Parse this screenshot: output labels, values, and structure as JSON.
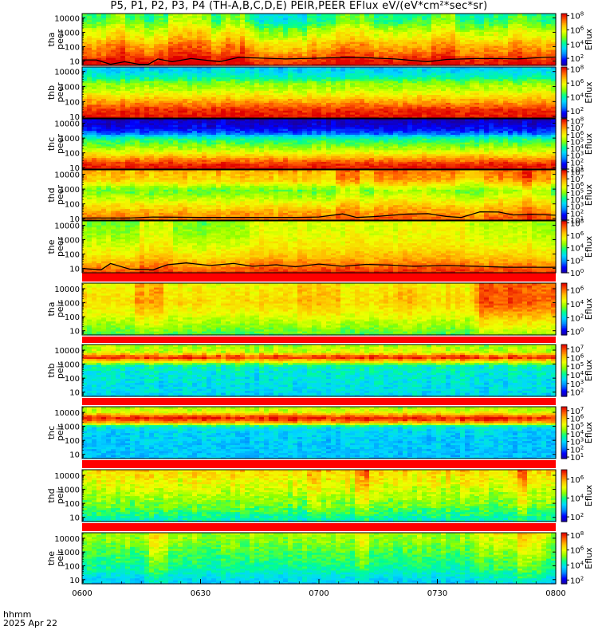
{
  "title": "P5, P1, P2, P3, P4 (TH-A,B,C,D,E) PEIR,PEER EFlux eV/(eV*cm²*sec*sr)",
  "time_axis": {
    "ticks": [
      "0600",
      "0630",
      "0700",
      "0730",
      "0800"
    ],
    "label_unit": "hhmm",
    "date": "2025 Apr 22"
  },
  "colors": {
    "cmap": [
      "#1a00a0",
      "#0000ff",
      "#0088ff",
      "#00d8ff",
      "#00ff90",
      "#8aff00",
      "#f0ff00",
      "#ffc000",
      "#ff6000",
      "#e00000"
    ],
    "bar_red": "#ff0000",
    "potential_line": "#000000"
  },
  "chart_data": [
    {
      "type": "heatmap",
      "id": "tha-peer",
      "probe": "tha",
      "species": "peer",
      "ylabel": [
        "tha",
        "peer"
      ],
      "yticks": [
        "10000",
        "1000",
        "100",
        "10"
      ],
      "ylog": true,
      "ylim": [
        5,
        20000
      ],
      "colorbar": {
        "label": "Eflux",
        "ticks": [
          {
            "e": "8",
            "v": 8
          },
          {
            "e": "6",
            "v": 6
          },
          {
            "e": "4",
            "v": 4
          },
          {
            "e": "2",
            "v": 2
          }
        ],
        "range": [
          1,
          8.3
        ]
      },
      "base_profile": [
        [
          0,
          8.0
        ],
        [
          0.12,
          7.6
        ],
        [
          0.22,
          7.0
        ],
        [
          0.42,
          6.2
        ],
        [
          0.55,
          5.4
        ],
        [
          0.7,
          4.8
        ],
        [
          0.85,
          3.8
        ],
        [
          1,
          3.5
        ]
      ],
      "events": [
        [
          0.16,
          0.2,
          0.8,
          0.15
        ],
        [
          0.07,
          0.015,
          0.8,
          0.05
        ],
        [
          0.23,
          0.04,
          0.9,
          0.1
        ],
        [
          0.32,
          0.02,
          0.8,
          0.1
        ],
        [
          0.54,
          0.06,
          0.6,
          0.1
        ],
        [
          0.66,
          0.12,
          0.8,
          0.15
        ],
        [
          0.84,
          0.1,
          0.6,
          0.12
        ],
        [
          0.95,
          0.05,
          0.6,
          0.1
        ]
      ],
      "potential": [
        [
          0,
          12
        ],
        [
          0.03,
          12
        ],
        [
          0.06,
          6
        ],
        [
          0.09,
          9
        ],
        [
          0.12,
          6
        ],
        [
          0.14,
          6
        ],
        [
          0.16,
          14
        ],
        [
          0.19,
          9
        ],
        [
          0.23,
          15
        ],
        [
          0.29,
          9
        ],
        [
          0.33,
          18
        ],
        [
          0.38,
          16
        ],
        [
          0.43,
          14
        ],
        [
          0.5,
          16
        ],
        [
          0.55,
          18
        ],
        [
          0.6,
          17
        ],
        [
          0.66,
          14
        ],
        [
          0.73,
          9
        ],
        [
          0.77,
          13
        ],
        [
          0.83,
          15
        ],
        [
          0.88,
          15
        ],
        [
          0.92,
          14
        ],
        [
          0.97,
          18
        ],
        [
          1,
          19
        ]
      ]
    },
    {
      "type": "heatmap",
      "id": "thb-peer",
      "probe": "thb",
      "species": "peer",
      "ylabel": [
        "thb",
        "peer"
      ],
      "yticks": [
        "10000",
        "1000",
        "100",
        "10"
      ],
      "ylog": true,
      "ylim": [
        8,
        20000
      ],
      "colorbar": {
        "label": "Eflux",
        "ticks": [
          {
            "e": "8",
            "v": 8
          },
          {
            "e": "6",
            "v": 6
          },
          {
            "e": "4",
            "v": 4
          },
          {
            "e": "2",
            "v": 2
          }
        ],
        "range": [
          1,
          8.3
        ]
      },
      "base_profile": [
        [
          0,
          8.2
        ],
        [
          0.15,
          8.0
        ],
        [
          0.25,
          7.4
        ],
        [
          0.38,
          6.6
        ],
        [
          0.55,
          5.5
        ],
        [
          0.7,
          5.0
        ],
        [
          0.8,
          4.0
        ],
        [
          1,
          3.2
        ]
      ],
      "events": [],
      "potential": []
    },
    {
      "type": "heatmap",
      "id": "thc-peer",
      "probe": "thc",
      "species": "peer",
      "ylabel": [
        "thc",
        "peer"
      ],
      "yticks": [
        "10000",
        "1000",
        "100",
        "10"
      ],
      "ylog": true,
      "ylim": [
        8,
        20000
      ],
      "colorbar": {
        "label": "Eflux",
        "ticks": [
          {
            "e": "8",
            "v": 8
          },
          {
            "e": "7",
            "v": 7
          },
          {
            "e": "6",
            "v": 6
          },
          {
            "e": "5",
            "v": 5
          },
          {
            "e": "4",
            "v": 4
          },
          {
            "e": "3",
            "v": 3
          },
          {
            "e": "2",
            "v": 2
          },
          {
            "e": "1",
            "v": 1
          }
        ],
        "range": [
          1,
          8.3
        ]
      },
      "base_profile": [
        [
          0,
          8.2
        ],
        [
          0.1,
          8.0
        ],
        [
          0.2,
          7.2
        ],
        [
          0.35,
          5.8
        ],
        [
          0.5,
          4.8
        ],
        [
          0.62,
          4.2
        ],
        [
          0.72,
          2.4
        ],
        [
          0.85,
          1.6
        ],
        [
          1,
          1.2
        ]
      ],
      "events": [],
      "potential": []
    },
    {
      "type": "heatmap",
      "id": "thd-peer",
      "probe": "thd",
      "species": "peer",
      "ylabel": [
        "thd",
        "peer"
      ],
      "yticks": [
        "10000",
        "1000",
        "100",
        "10"
      ],
      "ylog": true,
      "ylim": [
        8,
        20000
      ],
      "colorbar": {
        "label": "Eflux",
        "ticks": [
          {
            "e": "8",
            "v": 8
          },
          {
            "e": "7",
            "v": 7
          },
          {
            "e": "6",
            "v": 6
          },
          {
            "e": "5",
            "v": 5
          },
          {
            "e": "4",
            "v": 4
          },
          {
            "e": "3",
            "v": 3
          },
          {
            "e": "2",
            "v": 2
          },
          {
            "e": "1",
            "v": 1
          }
        ],
        "range": [
          1,
          8.3
        ]
      },
      "base_profile": [
        [
          0,
          7.4
        ],
        [
          0.12,
          7.0
        ],
        [
          0.3,
          6.2
        ],
        [
          0.45,
          5.4
        ],
        [
          0.6,
          4.8
        ],
        [
          0.8,
          6.4
        ],
        [
          1,
          6.8
        ]
      ],
      "events": [
        [
          0.7,
          0.08,
          0.6,
          0.1
        ],
        [
          0.56,
          0.02,
          0.8,
          0.15
        ],
        [
          0.9,
          0.05,
          0.6,
          0.1
        ],
        [
          0.96,
          0.03,
          0.8,
          0.15
        ]
      ],
      "potential": [
        [
          0,
          11
        ],
        [
          0.1,
          11
        ],
        [
          0.15,
          13
        ],
        [
          0.25,
          12
        ],
        [
          0.45,
          12
        ],
        [
          0.5,
          13
        ],
        [
          0.55,
          21
        ],
        [
          0.58,
          12
        ],
        [
          0.62,
          14
        ],
        [
          0.68,
          20
        ],
        [
          0.73,
          22
        ],
        [
          0.77,
          14
        ],
        [
          0.8,
          12
        ],
        [
          0.84,
          29
        ],
        [
          0.88,
          28
        ],
        [
          0.91,
          18
        ],
        [
          0.95,
          20
        ],
        [
          1,
          17
        ]
      ]
    },
    {
      "type": "heatmap",
      "id": "the-peer",
      "probe": "the",
      "species": "peer",
      "ylabel": [
        "the",
        "peer"
      ],
      "yticks": [
        "10000",
        "1000",
        "100",
        "10"
      ],
      "ylog": true,
      "ylim": [
        5,
        20000
      ],
      "colorbar": {
        "label": "Eflux",
        "ticks": [
          {
            "e": "8",
            "v": 8
          },
          {
            "e": "6",
            "v": 6
          },
          {
            "e": "4",
            "v": 4
          },
          {
            "e": "2",
            "v": 2
          },
          {
            "e": "0",
            "v": 0
          }
        ],
        "range": [
          0,
          8.3
        ]
      },
      "base_profile": [
        [
          0,
          7.6
        ],
        [
          0.15,
          6.8
        ],
        [
          0.3,
          6.0
        ],
        [
          0.5,
          5.3
        ],
        [
          0.7,
          4.8
        ],
        [
          1,
          4.4
        ]
      ],
      "events": [
        [
          0.16,
          0.03,
          0.8,
          0.1
        ],
        [
          0.58,
          0.22,
          0.9,
          0.18
        ],
        [
          0.88,
          0.08,
          0.7,
          0.15
        ]
      ],
      "potential": [
        [
          0,
          10
        ],
        [
          0.04,
          8
        ],
        [
          0.06,
          22
        ],
        [
          0.1,
          9
        ],
        [
          0.15,
          8
        ],
        [
          0.18,
          18
        ],
        [
          0.22,
          24
        ],
        [
          0.27,
          16
        ],
        [
          0.32,
          22
        ],
        [
          0.36,
          14
        ],
        [
          0.41,
          18
        ],
        [
          0.45,
          13
        ],
        [
          0.5,
          20
        ],
        [
          0.55,
          14
        ],
        [
          0.6,
          19
        ],
        [
          0.65,
          17
        ],
        [
          0.7,
          14
        ],
        [
          0.77,
          16
        ],
        [
          0.83,
          14
        ],
        [
          0.9,
          12
        ],
        [
          1,
          12
        ]
      ]
    },
    {
      "type": "heatmap",
      "id": "tha-peir",
      "probe": "tha",
      "species": "peir",
      "ylabel": [
        "tha",
        "peir"
      ],
      "yticks": [
        "10000",
        "1000",
        "100",
        "10"
      ],
      "ylog": true,
      "ylim": [
        5,
        25000
      ],
      "colorbar": {
        "label": "Eflux",
        "ticks": [
          {
            "e": "6",
            "v": 6
          },
          {
            "e": "4",
            "v": 4
          },
          {
            "e": "2",
            "v": 2
          },
          {
            "e": "0",
            "v": 0
          }
        ],
        "range": [
          -0.5,
          7
        ]
      },
      "base_profile": [
        [
          0,
          3.2
        ],
        [
          0.2,
          3.8
        ],
        [
          0.45,
          4.6
        ],
        [
          0.62,
          5.0
        ],
        [
          0.85,
          4.8
        ],
        [
          1,
          4.6
        ]
      ],
      "events": [
        [
          0.14,
          0.025,
          0.8,
          0.12
        ],
        [
          0.5,
          0.04,
          0.5,
          0.12
        ],
        [
          0.68,
          0.02,
          0.6,
          0.1
        ],
        [
          0.93,
          0.1,
          0.7,
          0.1
        ],
        [
          0.99,
          0.15,
          0.9,
          0.12
        ]
      ],
      "potential": []
    },
    {
      "type": "heatmap",
      "id": "thb-peir",
      "probe": "thb",
      "species": "peir",
      "ylabel": [
        "thb",
        "peir"
      ],
      "yticks": [
        "10000",
        "1000",
        "100",
        "10"
      ],
      "ylog": true,
      "ylim": [
        5,
        25000
      ],
      "colorbar": {
        "label": "Eflux",
        "ticks": [
          {
            "e": "7",
            "v": 7
          },
          {
            "e": "6",
            "v": 6
          },
          {
            "e": "5",
            "v": 5
          },
          {
            "e": "4",
            "v": 4
          },
          {
            "e": "3",
            "v": 3
          },
          {
            "e": "2",
            "v": 2
          }
        ],
        "range": [
          1.5,
          7.5
        ]
      },
      "base_profile": [
        [
          0,
          3.5
        ],
        [
          0.5,
          3.8
        ],
        [
          0.6,
          4.0
        ],
        [
          0.72,
          6.5
        ],
        [
          0.76,
          7.3
        ],
        [
          0.8,
          6.6
        ],
        [
          0.86,
          5.3
        ],
        [
          1,
          5.0
        ]
      ],
      "events": [],
      "potential": []
    },
    {
      "type": "heatmap",
      "id": "thc-peir",
      "probe": "thc",
      "species": "peir",
      "ylabel": [
        "thc",
        "peir"
      ],
      "yticks": [
        "10000",
        "1000",
        "100",
        "10"
      ],
      "ylog": true,
      "ylim": [
        5,
        25000
      ],
      "colorbar": {
        "label": "Eflux",
        "ticks": [
          {
            "e": "7",
            "v": 7
          },
          {
            "e": "6",
            "v": 6
          },
          {
            "e": "5",
            "v": 5
          },
          {
            "e": "4",
            "v": 4
          },
          {
            "e": "3",
            "v": 3
          },
          {
            "e": "2",
            "v": 2
          },
          {
            "e": "1",
            "v": 1
          }
        ],
        "range": [
          0.8,
          7.5
        ]
      },
      "base_profile": [
        [
          0,
          2.8
        ],
        [
          0.5,
          3.0
        ],
        [
          0.62,
          3.3
        ],
        [
          0.72,
          6.6
        ],
        [
          0.8,
          7.4
        ],
        [
          0.86,
          6.0
        ],
        [
          0.92,
          5.0
        ],
        [
          1,
          4.8
        ]
      ],
      "events": [],
      "potential": []
    },
    {
      "type": "heatmap",
      "id": "thd-peir",
      "probe": "thd",
      "species": "peir",
      "ylabel": [
        "thd",
        "peir"
      ],
      "yticks": [
        "10000",
        "1000",
        "100",
        "10"
      ],
      "ylog": true,
      "ylim": [
        5,
        25000
      ],
      "colorbar": {
        "label": "Eflux",
        "ticks": [
          {
            "e": "6",
            "v": 6
          },
          {
            "e": "4",
            "v": 4
          },
          {
            "e": "2",
            "v": 2
          }
        ],
        "range": [
          1.5,
          7
        ]
      },
      "base_profile": [
        [
          0,
          3.6
        ],
        [
          0.3,
          4.4
        ],
        [
          0.6,
          4.9
        ],
        [
          0.85,
          5.3
        ],
        [
          1,
          5.5
        ]
      ],
      "events": [
        [
          0.59,
          0.01,
          0.8,
          0.12
        ],
        [
          0.49,
          0.01,
          0.5,
          0.1
        ],
        [
          0.93,
          0.01,
          0.8,
          0.1
        ]
      ],
      "potential": []
    },
    {
      "type": "heatmap",
      "id": "the-peir",
      "probe": "the",
      "species": "peir",
      "ylabel": [
        "the",
        "peir"
      ],
      "yticks": [
        "10000",
        "1000",
        "100",
        "10"
      ],
      "ylog": true,
      "ylim": [
        5,
        25000
      ],
      "colorbar": {
        "label": "Eflux",
        "ticks": [
          {
            "e": "8",
            "v": 8
          },
          {
            "e": "6",
            "v": 6
          },
          {
            "e": "4",
            "v": 4
          },
          {
            "e": "2",
            "v": 2
          }
        ],
        "range": [
          1.5,
          8.3
        ]
      },
      "base_profile": [
        [
          0,
          3.6
        ],
        [
          0.3,
          4.4
        ],
        [
          0.6,
          4.9
        ],
        [
          0.85,
          5.3
        ],
        [
          1,
          5.5
        ]
      ],
      "events": [
        [
          0.16,
          0.015,
          0.9,
          0.12
        ],
        [
          0.59,
          0.01,
          0.6,
          0.1
        ],
        [
          0.89,
          0.06,
          0.6,
          0.1
        ],
        [
          0.95,
          0.03,
          0.7,
          0.1
        ]
      ],
      "potential": []
    }
  ]
}
